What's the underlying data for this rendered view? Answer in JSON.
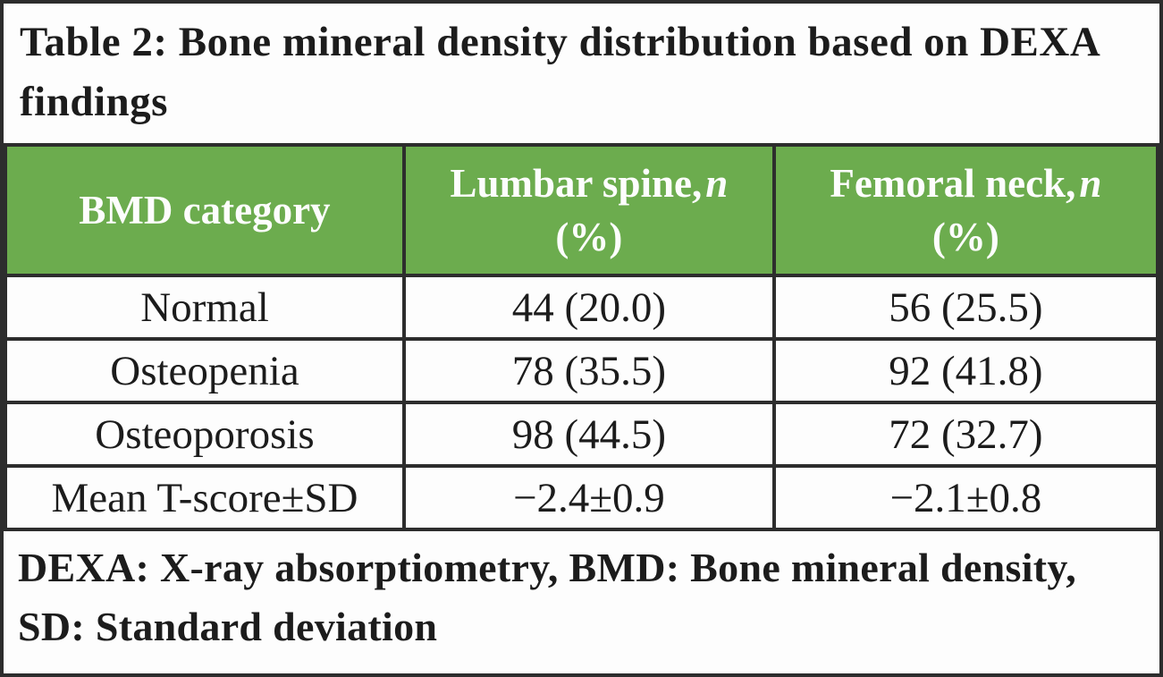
{
  "table": {
    "title": "Table 2: Bone mineral density distribution based on DEXA findings",
    "header": {
      "bmd_category": "BMD category",
      "lumbar": {
        "label": "Lumbar spine,",
        "n": "n",
        "unit": "(%)"
      },
      "femoral": {
        "label": "Femoral neck,",
        "n": "n",
        "unit": "(%)"
      }
    },
    "rows": [
      {
        "category": "Normal",
        "lumbar": "44 (20.0)",
        "femoral": "56 (25.5)"
      },
      {
        "category": "Osteopenia",
        "lumbar": "78 (35.5)",
        "femoral": "92 (41.8)"
      },
      {
        "category": "Osteoporosis",
        "lumbar": "98 (44.5)",
        "femoral": "72 (32.7)"
      },
      {
        "category": "Mean T-score±SD",
        "lumbar": "−2.4±0.9",
        "femoral": "−2.1±0.8"
      }
    ],
    "footnote": "DEXA: X-ray absorptiometry, BMD: Bone mineral density, SD: Standard deviation",
    "colors": {
      "header_bg": "#6cac4e",
      "header_text": "#fdfdfd",
      "border": "#2d2d2d",
      "text": "#1c1c1c"
    }
  }
}
